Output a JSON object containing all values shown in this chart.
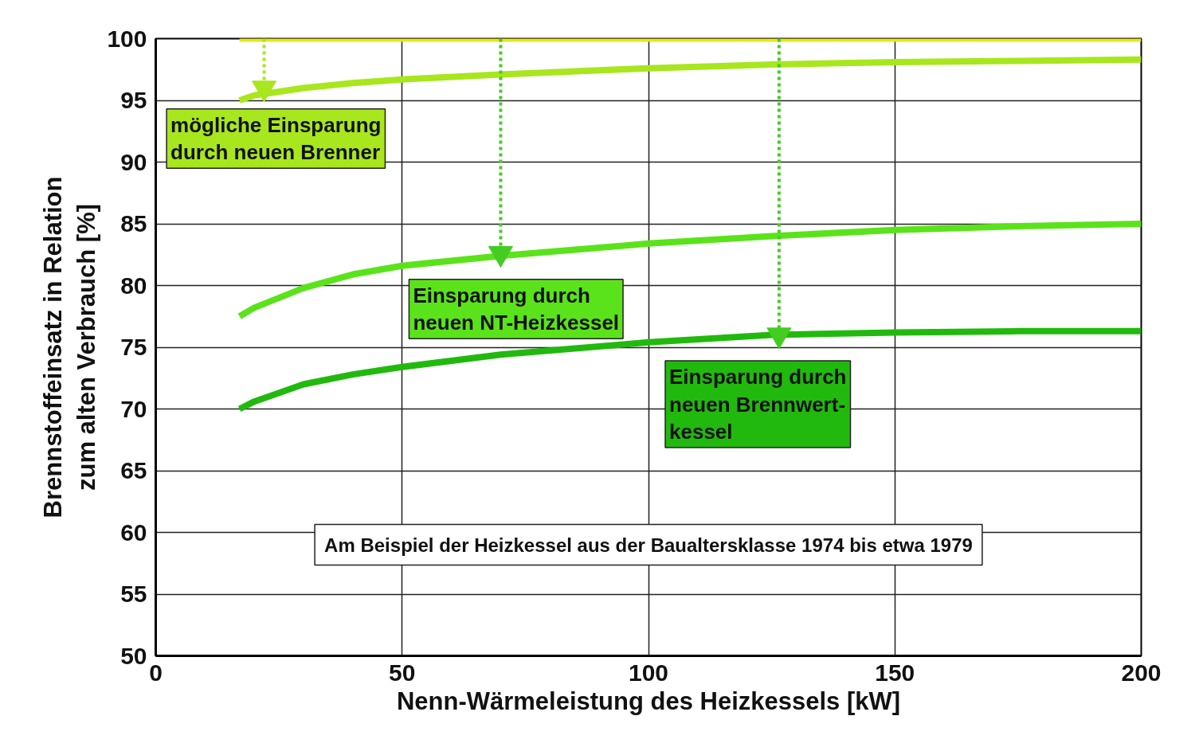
{
  "chart_data": {
    "type": "line",
    "xlabel": "Nenn-Wärmeleistung des Heizkessels [kW]",
    "ylabel": "Brennstoffeinsatz in Relation\nzum alten Verbrauch [%]",
    "xlim": [
      0,
      200
    ],
    "ylim": [
      50,
      100
    ],
    "xticks": [
      0,
      50,
      100,
      150,
      200
    ],
    "yticks": [
      50,
      55,
      60,
      65,
      70,
      75,
      80,
      85,
      90,
      95,
      100
    ],
    "grid": true,
    "marker": "none",
    "line_style": "solid",
    "series": [
      {
        "color": "#e6e81a",
        "x": [
          17,
          200
        ],
        "values": [
          100,
          100
        ]
      },
      {
        "color": "#a8e61e",
        "x": [
          17,
          20,
          30,
          40,
          50,
          70,
          100,
          125,
          150,
          175,
          200
        ],
        "values": [
          95,
          95.4,
          96.0,
          96.4,
          96.7,
          97.1,
          97.6,
          97.9,
          98.1,
          98.2,
          98.3
        ]
      },
      {
        "color": "#5ae31a",
        "x": [
          17,
          20,
          30,
          40,
          50,
          70,
          100,
          125,
          150,
          175,
          200
        ],
        "values": [
          77.5,
          78.2,
          79.8,
          80.9,
          81.6,
          82.4,
          83.4,
          84.0,
          84.5,
          84.8,
          85.0
        ]
      },
      {
        "color": "#22b90e",
        "x": [
          17,
          20,
          30,
          40,
          50,
          70,
          100,
          125,
          150,
          175,
          200
        ],
        "values": [
          70.0,
          70.6,
          72.0,
          72.8,
          73.4,
          74.4,
          75.4,
          76.0,
          76.2,
          76.3,
          76.3
        ]
      },
      {
        "color": "#a8e61e",
        "line_style": "dotted",
        "marker": "triangle",
        "x": [
          22,
          22
        ],
        "values": [
          100,
          96.0
        ]
      },
      {
        "color": "#44cc22",
        "line_style": "dotted",
        "marker": "triangle",
        "x": [
          70,
          70
        ],
        "values": [
          100,
          82.6
        ]
      },
      {
        "color": "#44cc22",
        "line_style": "dotted",
        "marker": "triangle",
        "x": [
          126.5,
          126.5
        ],
        "values": [
          100,
          76.0
        ]
      }
    ],
    "annotations": [
      "mögliche Einsparung\ndurch neuen Brenner",
      "Einsparung durch\nneuen NT-Heizkessel",
      "Einsparung durch\nneuen Brennwert-\nkessel",
      "Am Beispiel der Heizkessel aus der Baualtersklasse 1974 bis etwa 1979"
    ]
  }
}
